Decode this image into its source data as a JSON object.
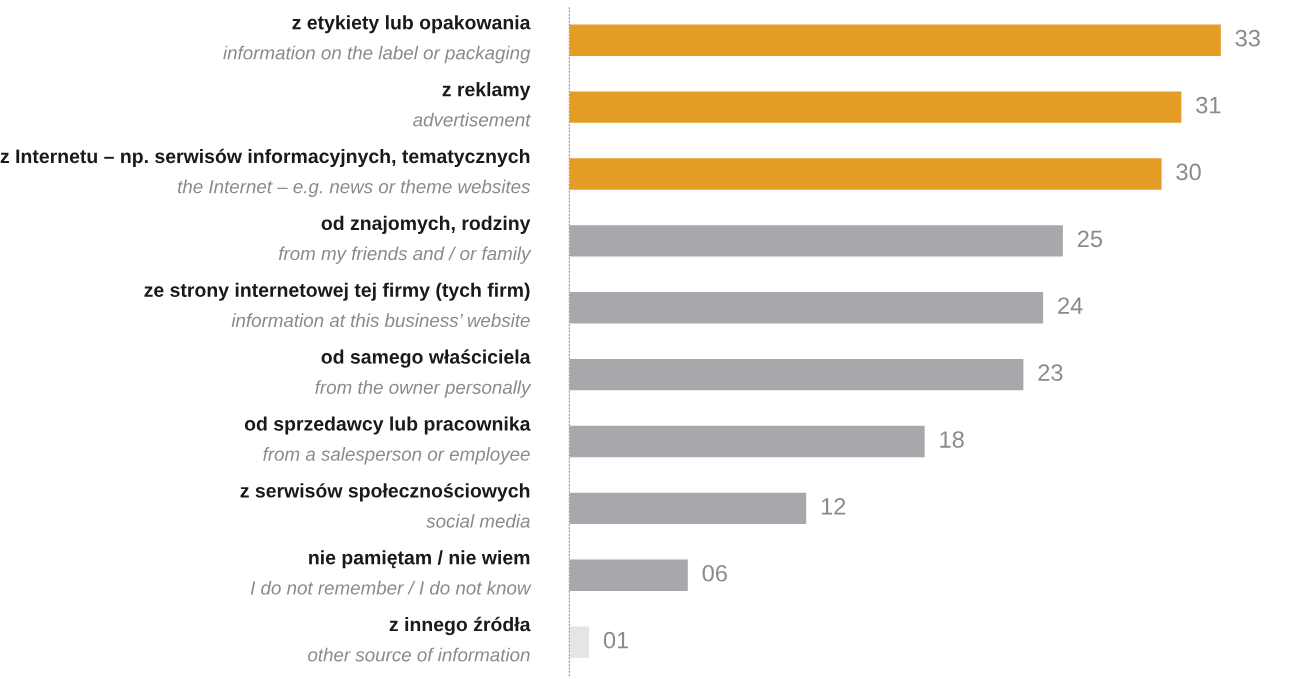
{
  "chart_data": {
    "type": "bar",
    "orientation": "horizontal",
    "categories": [
      "z etykiety lub opakowania\ninformation on the label or packaging",
      "z reklamy\nadvertisement",
      "z Internetu – np. serwisów informacyjnych, tematycznych\nthe Internet – e.g. news or theme websites",
      "od znajomych, rodziny\nfrom my friends and / or family",
      "ze strony internetowej tej firmy (tych firm)\ninformation at this business’ website",
      "od samego właściciela\nfrom the owner personally",
      "od sprzedawcy lub pracownika\nfrom a salesperson or employee",
      "z serwisów społecznościowych\nsocial media",
      "nie pamiętam / nie wiem\nI do not remember / I do not know",
      "z innego źródła\nother source of information"
    ],
    "values": [
      33,
      31,
      30,
      25,
      24,
      23,
      18,
      12,
      6,
      1
    ],
    "value_labels": [
      "33",
      "31",
      "30",
      "25",
      "24",
      "23",
      "18",
      "12",
      "06",
      "01"
    ],
    "colors": [
      "#e39d27",
      "#e39d27",
      "#e39d27",
      "#a7a8ab",
      "#a7a8ab",
      "#a7a8ab",
      "#a7a8ab",
      "#a7a8ab",
      "#a7a8ab",
      "#e4e5e6"
    ],
    "data_labels": false
  }
}
